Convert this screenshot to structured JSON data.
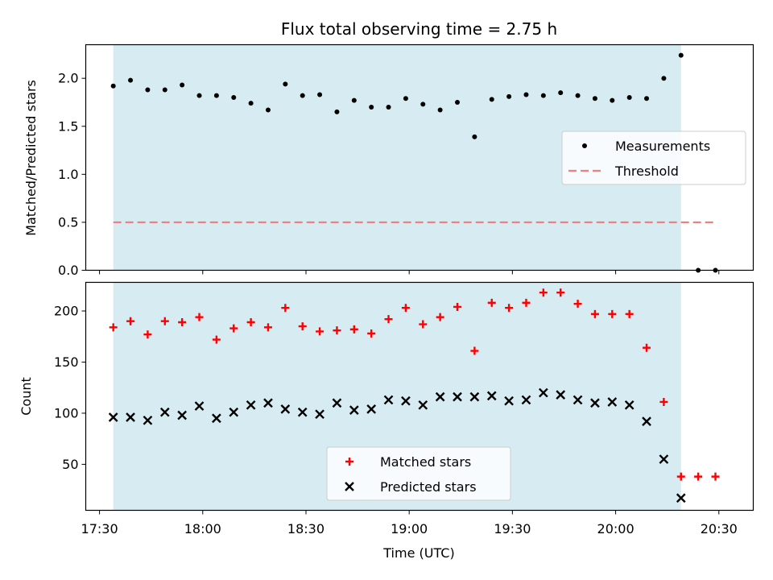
{
  "chart_data": [
    {
      "type": "scatter",
      "title": "Flux total observing time = 2.75 h",
      "xlabel": "",
      "ylabel": "Matched/Predicted stars",
      "ylim": [
        0,
        2.35
      ],
      "yticks": [
        0.0,
        0.5,
        1.0,
        1.5,
        2.0
      ],
      "ytick_labels": [
        "0.0",
        "0.5",
        "1.0",
        "1.5",
        "2.0"
      ],
      "xlim": [
        "17:26",
        "20:40"
      ],
      "grid": false,
      "legend_placement": "center-right",
      "shaded_interval": [
        "17:34",
        "20:19"
      ],
      "shade_color": "#add8e6",
      "series": [
        {
          "name": "Measurements",
          "color": "#000000",
          "marker": "dot",
          "x": [
            "17:34",
            "17:39",
            "17:44",
            "17:49",
            "17:54",
            "17:59",
            "18:04",
            "18:09",
            "18:14",
            "18:19",
            "18:24",
            "18:29",
            "18:34",
            "18:39",
            "18:44",
            "18:49",
            "18:54",
            "18:59",
            "19:04",
            "19:09",
            "19:14",
            "19:19",
            "19:24",
            "19:29",
            "19:34",
            "19:39",
            "19:44",
            "19:49",
            "19:54",
            "19:59",
            "20:04",
            "20:09",
            "20:14",
            "20:19",
            "20:24",
            "20:29"
          ],
          "y": [
            1.92,
            1.98,
            1.88,
            1.88,
            1.93,
            1.82,
            1.82,
            1.8,
            1.74,
            1.67,
            1.94,
            1.82,
            1.83,
            1.65,
            1.77,
            1.7,
            1.7,
            1.79,
            1.73,
            1.67,
            1.75,
            1.39,
            1.78,
            1.81,
            1.83,
            1.82,
            1.85,
            1.82,
            1.79,
            1.77,
            1.8,
            1.79,
            2.0,
            2.24,
            0.0,
            0.0
          ]
        },
        {
          "name": "Threshold",
          "color": "#f08080",
          "style": "dashed",
          "x": [
            "17:34",
            "20:29"
          ],
          "y": [
            0.5,
            0.5
          ]
        }
      ]
    },
    {
      "type": "scatter",
      "title": "",
      "xlabel": "Time (UTC)",
      "ylabel": "Count",
      "ylim": [
        5,
        228
      ],
      "yticks": [
        50,
        100,
        150,
        200
      ],
      "ytick_labels": [
        "50",
        "100",
        "150",
        "200"
      ],
      "xlim": [
        "17:26",
        "20:40"
      ],
      "xticks": [
        "17:30",
        "18:00",
        "18:30",
        "19:00",
        "19:30",
        "20:00",
        "20:30"
      ],
      "xtick_labels": [
        "17:30",
        "18:00",
        "18:30",
        "19:00",
        "19:30",
        "20:00",
        "20:30"
      ],
      "grid": false,
      "legend_placement": "lower-center",
      "shaded_interval": [
        "17:34",
        "20:19"
      ],
      "shade_color": "#add8e6",
      "series": [
        {
          "name": "Matched stars",
          "color": "#ff0000",
          "marker": "plus",
          "x": [
            "17:34",
            "17:39",
            "17:44",
            "17:49",
            "17:54",
            "17:59",
            "18:04",
            "18:09",
            "18:14",
            "18:19",
            "18:24",
            "18:29",
            "18:34",
            "18:39",
            "18:44",
            "18:49",
            "18:54",
            "18:59",
            "19:04",
            "19:09",
            "19:14",
            "19:19",
            "19:24",
            "19:29",
            "19:34",
            "19:39",
            "19:44",
            "19:49",
            "19:54",
            "19:59",
            "20:04",
            "20:09",
            "20:14",
            "20:19",
            "20:24",
            "20:29"
          ],
          "y": [
            184,
            190,
            177,
            190,
            189,
            194,
            172,
            183,
            189,
            184,
            203,
            185,
            180,
            181,
            182,
            178,
            192,
            203,
            187,
            194,
            204,
            161,
            208,
            203,
            208,
            218,
            218,
            207,
            197,
            197,
            197,
            164,
            111,
            38,
            38,
            38
          ]
        },
        {
          "name": "Predicted stars",
          "color": "#000000",
          "marker": "x",
          "x": [
            "17:34",
            "17:39",
            "17:44",
            "17:49",
            "17:54",
            "17:59",
            "18:04",
            "18:09",
            "18:14",
            "18:19",
            "18:24",
            "18:29",
            "18:34",
            "18:39",
            "18:44",
            "18:49",
            "18:54",
            "18:59",
            "19:04",
            "19:09",
            "19:14",
            "19:19",
            "19:24",
            "19:29",
            "19:34",
            "19:39",
            "19:44",
            "19:49",
            "19:54",
            "19:59",
            "20:04",
            "20:09",
            "20:14",
            "20:19"
          ],
          "y": [
            96,
            96,
            93,
            101,
            98,
            107,
            95,
            101,
            108,
            110,
            104,
            101,
            99,
            110,
            103,
            104,
            113,
            112,
            108,
            116,
            116,
            116,
            117,
            112,
            113,
            120,
            118,
            113,
            110,
            111,
            108,
            92,
            55,
            17
          ]
        }
      ]
    }
  ]
}
